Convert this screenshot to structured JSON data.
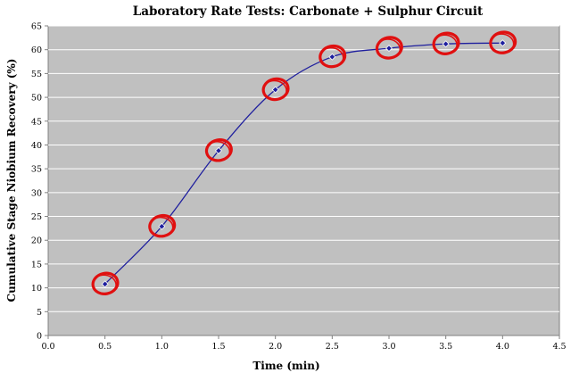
{
  "chart_data": {
    "type": "scatter",
    "title": "Laboratory Rate Tests: Carbonate + Sulphur Circuit",
    "xlabel": "Time (min)",
    "ylabel": "Cumulative Stage Niobium Recovery (%)",
    "xlim": [
      0.0,
      4.5
    ],
    "ylim": [
      0,
      65
    ],
    "x_ticks": [
      "0.0",
      "0.5",
      "1.0",
      "1.5",
      "2.0",
      "2.5",
      "3.0",
      "3.5",
      "4.0",
      "4.5"
    ],
    "y_ticks": [
      "0",
      "5",
      "10",
      "15",
      "20",
      "25",
      "30",
      "35",
      "40",
      "45",
      "50",
      "55",
      "60",
      "65"
    ],
    "grid": "horizontal",
    "legend": "none",
    "series": [
      {
        "x": [
          0.5,
          1.0,
          1.5,
          2.0,
          2.5,
          3.0,
          3.5,
          4.0
        ],
        "y": [
          10.8,
          22.9,
          38.8,
          51.6,
          58.5,
          60.3,
          61.2,
          61.4
        ],
        "line": "smooth",
        "marker": "diamond",
        "color": "#1f1f9e"
      }
    ],
    "annotations": [
      {
        "type": "circle",
        "color": "#e01010",
        "note": "hand-drawn red circle around each data point"
      }
    ],
    "plot_background": "#c0c0c0",
    "gridline_color": "#ffffff"
  }
}
